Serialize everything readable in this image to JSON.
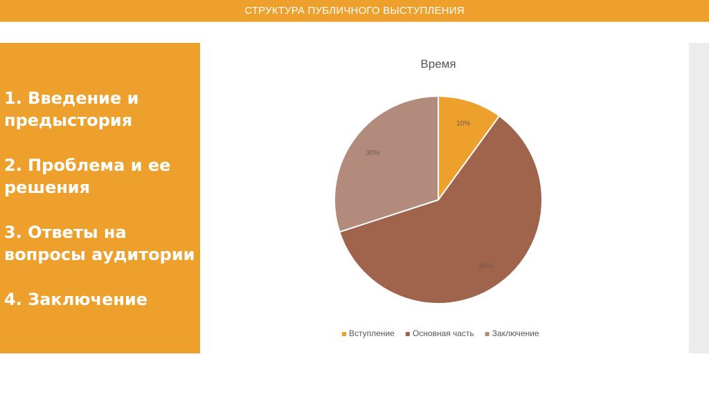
{
  "header": {
    "title": "СТРУКТУРА ПУБЛИЧНОГО ВЫСТУПЛЕНИЯ"
  },
  "agenda": {
    "items": [
      "1. Введение и предыстория",
      "2. Проблема и ее решения",
      "3. Ответы на вопросы аудитории",
      "4. Заключение"
    ]
  },
  "colors": {
    "accent": "#eda12c",
    "slice1": "#eda12c",
    "slice2": "#a0634c",
    "slice3": "#b38b7c"
  },
  "chart_data": {
    "type": "pie",
    "title": "Время",
    "categories": [
      "Вступление",
      "Основная часть",
      "Заключение"
    ],
    "values": [
      10,
      60,
      30
    ],
    "data_labels": [
      "10%",
      "60%",
      "30%"
    ],
    "legend_position": "bottom"
  }
}
